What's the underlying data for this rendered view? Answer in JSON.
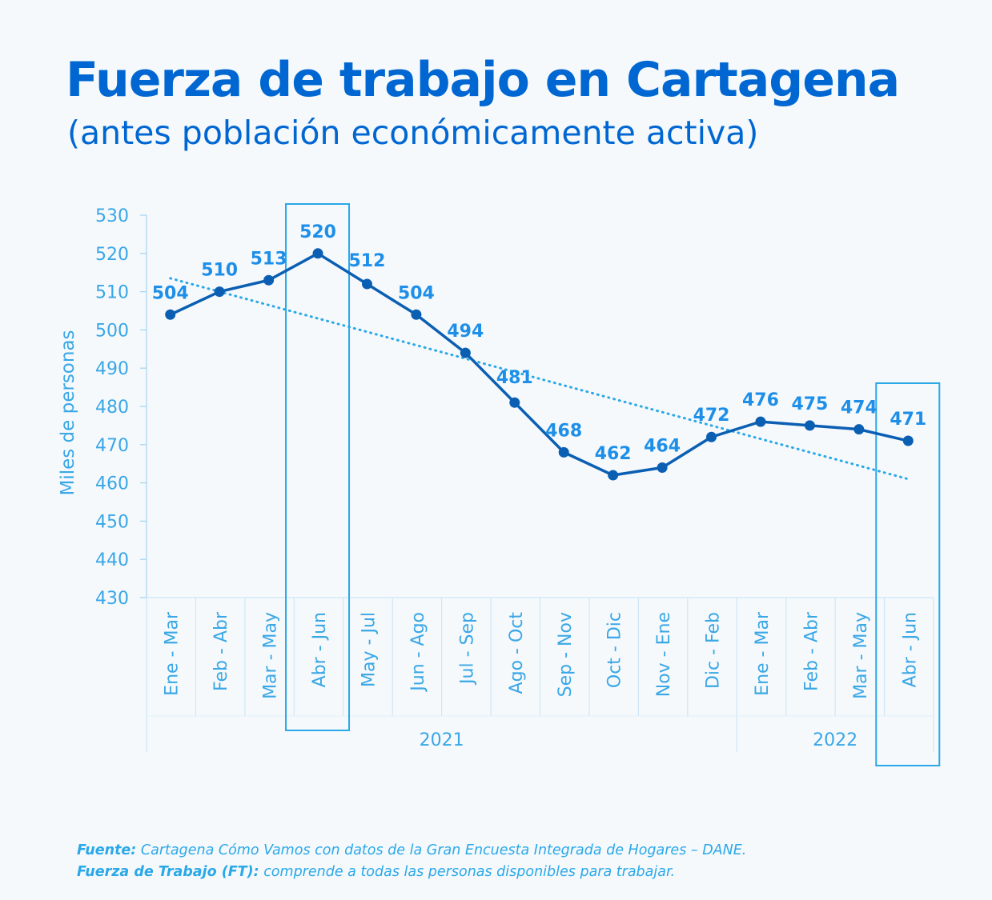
{
  "title": "Fuerza de trabajo en Cartagena",
  "subtitle": "(antes población económicamente activa)",
  "chart_data": {
    "type": "line",
    "ylabel": "Miles de personas",
    "ylim": [
      430,
      530
    ],
    "yticks": [
      530,
      520,
      510,
      500,
      490,
      480,
      470,
      460,
      450,
      440,
      430
    ],
    "categories": [
      "Ene - Mar",
      "Feb - Abr",
      "Mar - May",
      "Abr - Jun",
      "May - Jul",
      "Jun - Ago",
      "Jul - Sep",
      "Ago - Oct",
      "Sep - Nov",
      "Oct - Dic",
      "Nov - Ene",
      "Dic - Feb",
      "Ene - Mar",
      "Feb - Abr",
      "Mar - May",
      "Abr - Jun"
    ],
    "year_groups": [
      {
        "label": "2021",
        "start": 0,
        "end": 11
      },
      {
        "label": "2022",
        "start": 12,
        "end": 15
      }
    ],
    "series": [
      {
        "values": [
          504,
          510,
          513,
          520,
          512,
          504,
          494,
          481,
          468,
          462,
          464,
          472,
          476,
          475,
          474,
          471
        ]
      }
    ],
    "trendline": {
      "style": "dotted",
      "start": 513.5,
      "end": 461
    },
    "highlighted_categories": [
      3,
      15
    ],
    "grid": false
  },
  "footer": {
    "line1_label": "Fuente:",
    "line1_text": "Cartagena Cómo Vamos con datos de la Gran Encuesta Integrada de Hogares – DANE.",
    "line2_label": "Fuerza de Trabajo (FT):",
    "line2_text": "comprende a todas las personas disponibles para trabajar."
  },
  "colors": {
    "line": "#0b5fb3",
    "labels": "#1e8fe8",
    "axis_text": "#3aa7e6",
    "trend": "#2aa8e8",
    "title": "#0067d2",
    "highlight": "#2aa8e8"
  }
}
